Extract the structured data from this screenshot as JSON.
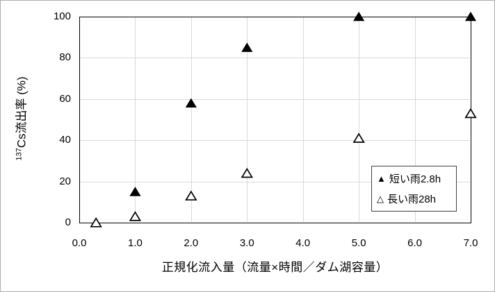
{
  "chart_data": {
    "type": "scatter",
    "title": "",
    "xlabel": "正規化流入量（流量×時間／ダム湖容量）",
    "ylabel": "137Cs流出率 (%)",
    "ylabel_superscript": "137",
    "ylabel_text": "Cs流出率 (%)",
    "xlim": [
      0.0,
      7.0
    ],
    "ylim": [
      0,
      100
    ],
    "x_ticks": [
      0.0,
      1.0,
      2.0,
      3.0,
      4.0,
      5.0,
      6.0,
      7.0
    ],
    "x_tick_labels": [
      "0.0",
      "1.0",
      "2.0",
      "3.0",
      "4.0",
      "5.0",
      "6.0",
      "7.0"
    ],
    "y_ticks": [
      0,
      20,
      40,
      60,
      80,
      100
    ],
    "y_tick_labels": [
      "0",
      "20",
      "40",
      "60",
      "80",
      "100"
    ],
    "grid": true,
    "legend_position": "inside bottom-right",
    "series": [
      {
        "name": "短い雨2.8h",
        "marker": "filled-triangle",
        "fill": "#000000",
        "outline": "#000000",
        "points": [
          [
            1.0,
            15
          ],
          [
            2.0,
            58
          ],
          [
            3.0,
            85
          ],
          [
            5.0,
            100
          ],
          [
            7.0,
            100
          ]
        ]
      },
      {
        "name": "長い雨28h",
        "marker": "open-triangle",
        "fill": "#ffffff",
        "outline": "#000000",
        "points": [
          [
            0.3,
            0
          ],
          [
            1.0,
            3
          ],
          [
            2.0,
            13
          ],
          [
            3.0,
            24
          ],
          [
            5.0,
            41
          ],
          [
            7.0,
            53
          ]
        ]
      }
    ],
    "legend": {
      "items": [
        {
          "marker": "▲",
          "label": "短い雨2.8h"
        },
        {
          "marker": "△",
          "label": "長い雨28h"
        }
      ]
    }
  },
  "colors": {
    "background": "#ffffff",
    "plot_border": "#000000",
    "gridline": "#d9d9d9",
    "tick_text": "#000000",
    "outer_border": "#ababab",
    "legend_border": "#404040"
  }
}
